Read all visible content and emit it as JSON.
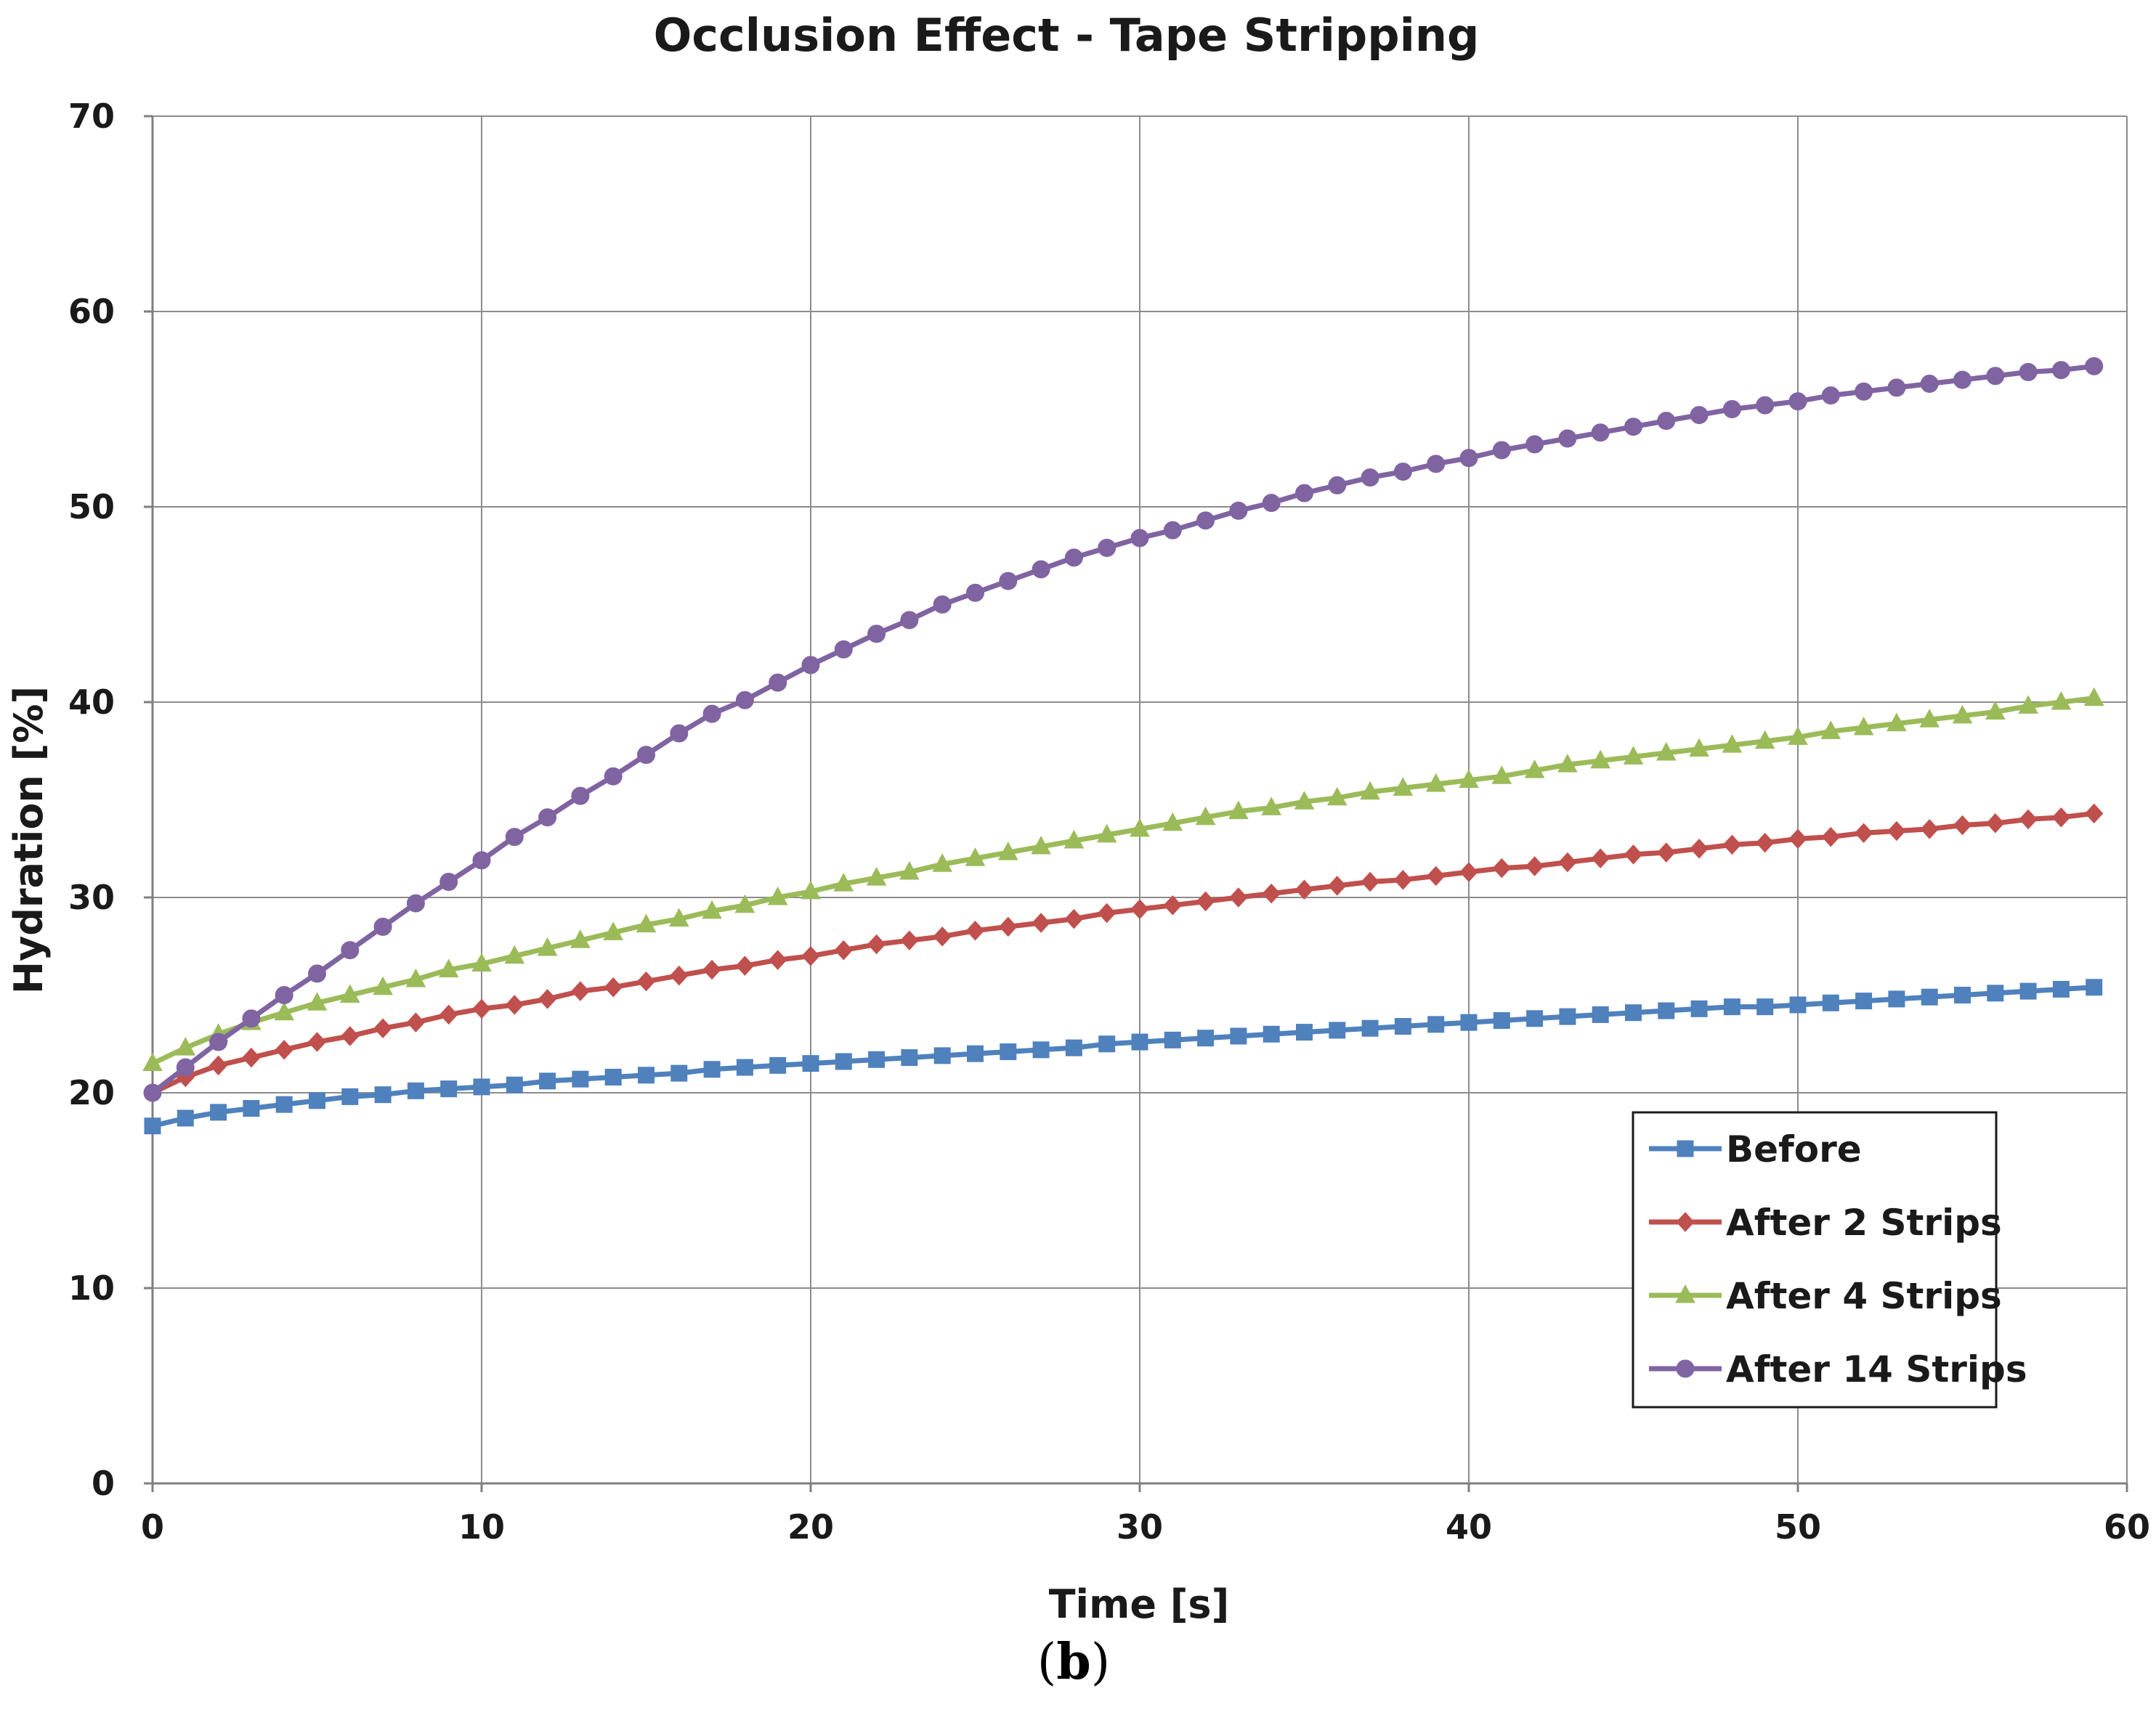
{
  "chart_data": {
    "type": "line",
    "title": "Occlusion Effect - Tape Stripping",
    "xlabel": "Time [s]",
    "ylabel": "Hydration [%]",
    "xlim": [
      0,
      60
    ],
    "ylim": [
      0,
      70
    ],
    "x_ticks": [
      0,
      10,
      20,
      30,
      40,
      50,
      60
    ],
    "y_ticks": [
      0,
      10,
      20,
      30,
      40,
      50,
      60,
      70
    ],
    "grid": true,
    "legend_position": "bottom-right",
    "panel_label": "b",
    "x": [
      0,
      1,
      2,
      3,
      4,
      5,
      6,
      7,
      8,
      9,
      10,
      11,
      12,
      13,
      14,
      15,
      16,
      17,
      18,
      19,
      20,
      21,
      22,
      23,
      24,
      25,
      26,
      27,
      28,
      29,
      30,
      31,
      32,
      33,
      34,
      35,
      36,
      37,
      38,
      39,
      40,
      41,
      42,
      43,
      44,
      45,
      46,
      47,
      48,
      49,
      50,
      51,
      52,
      53,
      54,
      55,
      56,
      57,
      58,
      59
    ],
    "series": [
      {
        "name": "Before",
        "color": "#4F81BD",
        "marker": "square",
        "values": [
          18.3,
          18.7,
          19.0,
          19.2,
          19.4,
          19.6,
          19.8,
          19.9,
          20.1,
          20.2,
          20.3,
          20.4,
          20.6,
          20.7,
          20.8,
          20.9,
          21.0,
          21.2,
          21.3,
          21.4,
          21.5,
          21.6,
          21.7,
          21.8,
          21.9,
          22.0,
          22.1,
          22.2,
          22.3,
          22.5,
          22.6,
          22.7,
          22.8,
          22.9,
          23.0,
          23.1,
          23.2,
          23.3,
          23.4,
          23.5,
          23.6,
          23.7,
          23.8,
          23.9,
          24.0,
          24.1,
          24.2,
          24.3,
          24.4,
          24.4,
          24.5,
          24.6,
          24.7,
          24.8,
          24.9,
          25.0,
          25.1,
          25.2,
          25.3,
          25.4
        ]
      },
      {
        "name": "After 2 Strips",
        "color": "#C0504D",
        "marker": "diamond",
        "values": [
          20.0,
          20.8,
          21.4,
          21.8,
          22.2,
          22.6,
          22.9,
          23.3,
          23.6,
          24.0,
          24.3,
          24.5,
          24.8,
          25.2,
          25.4,
          25.7,
          26.0,
          26.3,
          26.5,
          26.8,
          27.0,
          27.3,
          27.6,
          27.8,
          28.0,
          28.3,
          28.5,
          28.7,
          28.9,
          29.2,
          29.4,
          29.6,
          29.8,
          30.0,
          30.2,
          30.4,
          30.6,
          30.8,
          30.9,
          31.1,
          31.3,
          31.5,
          31.6,
          31.8,
          32.0,
          32.2,
          32.3,
          32.5,
          32.7,
          32.8,
          33.0,
          33.1,
          33.3,
          33.4,
          33.5,
          33.7,
          33.8,
          34.0,
          34.1,
          34.3
        ]
      },
      {
        "name": "After 4 Strips",
        "color": "#9BBB59",
        "marker": "triangle",
        "values": [
          21.5,
          22.3,
          23.0,
          23.6,
          24.1,
          24.6,
          25.0,
          25.4,
          25.8,
          26.3,
          26.6,
          27.0,
          27.4,
          27.8,
          28.2,
          28.6,
          28.9,
          29.3,
          29.6,
          30.0,
          30.3,
          30.7,
          31.0,
          31.3,
          31.7,
          32.0,
          32.3,
          32.6,
          32.9,
          33.2,
          33.5,
          33.8,
          34.1,
          34.4,
          34.6,
          34.9,
          35.1,
          35.4,
          35.6,
          35.8,
          36.0,
          36.2,
          36.5,
          36.8,
          37.0,
          37.2,
          37.4,
          37.6,
          37.8,
          38.0,
          38.2,
          38.5,
          38.7,
          38.9,
          39.1,
          39.3,
          39.5,
          39.8,
          40.0,
          40.2
        ]
      },
      {
        "name": "After 14 Strips",
        "color": "#8064A2",
        "marker": "circle",
        "values": [
          20.0,
          21.3,
          22.6,
          23.8,
          25.0,
          26.1,
          27.3,
          28.5,
          29.7,
          30.8,
          31.9,
          33.1,
          34.1,
          35.2,
          36.2,
          37.3,
          38.4,
          39.4,
          40.1,
          41.0,
          41.9,
          42.7,
          43.5,
          44.2,
          45.0,
          45.6,
          46.2,
          46.8,
          47.4,
          47.9,
          48.4,
          48.8,
          49.3,
          49.8,
          50.2,
          50.7,
          51.1,
          51.5,
          51.8,
          52.2,
          52.5,
          52.9,
          53.2,
          53.5,
          53.8,
          54.1,
          54.4,
          54.7,
          55.0,
          55.2,
          55.4,
          55.7,
          55.9,
          56.1,
          56.3,
          56.5,
          56.7,
          56.9,
          57.0,
          57.2
        ]
      }
    ]
  }
}
